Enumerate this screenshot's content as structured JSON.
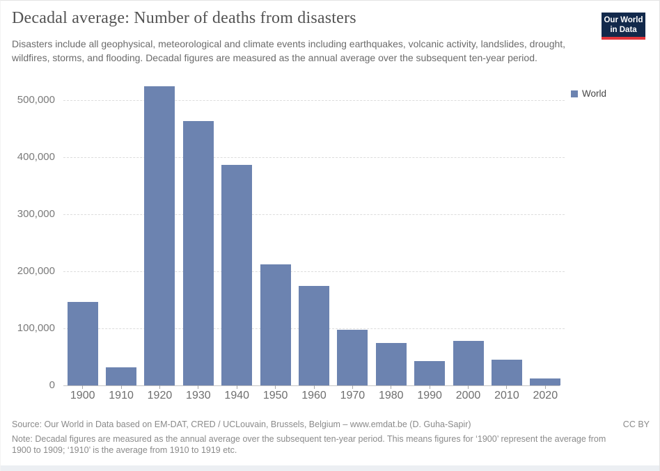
{
  "header": {
    "title": "Decadal average: Number of deaths from disasters",
    "subtitle": "Disasters include all geophysical, meteorological and climate events including earthquakes, volcanic activity, landslides, drought, wildfires, storms, and flooding. Decadal figures are measured as the annual average over the subsequent ten-year period.",
    "logo": {
      "line1": "Our World",
      "line2": "in Data",
      "bg_color": "#12294B",
      "stripe_color": "#E2363B"
    }
  },
  "legend": {
    "label": "World"
  },
  "chart_data": {
    "type": "bar",
    "title": "Decadal average: Number of deaths from disasters",
    "xlabel": "",
    "ylabel": "",
    "categories": [
      "1900",
      "1910",
      "1920",
      "1930",
      "1940",
      "1950",
      "1960",
      "1970",
      "1980",
      "1990",
      "2000",
      "2010",
      "2020"
    ],
    "series": [
      {
        "name": "World",
        "values": [
          146000,
          32000,
          524000,
          463000,
          386000,
          212000,
          174000,
          98000,
          74000,
          43000,
          78000,
          45000,
          12000
        ]
      }
    ],
    "ylim": [
      0,
      530000
    ],
    "yticks": [
      0,
      100000,
      200000,
      300000,
      400000,
      500000
    ],
    "ytick_labels": [
      "0",
      "100,000",
      "200,000",
      "300,000",
      "400,000",
      "500,000"
    ],
    "grid": "horizontal-dashed",
    "legend_position": "right",
    "color": "#6C83B0"
  },
  "footer": {
    "source": "Source: Our World in Data based on EM-DAT, CRED / UCLouvain, Brussels, Belgium – www.emdat.be (D. Guha-Sapir)",
    "license": "CC BY",
    "note": "Note: Decadal figures are measured as the annual average over the subsequent ten-year period. This means figures for ‘1900’ represent the average from 1900 to 1909; ‘1910’ is the average from 1910 to 1919 etc."
  }
}
